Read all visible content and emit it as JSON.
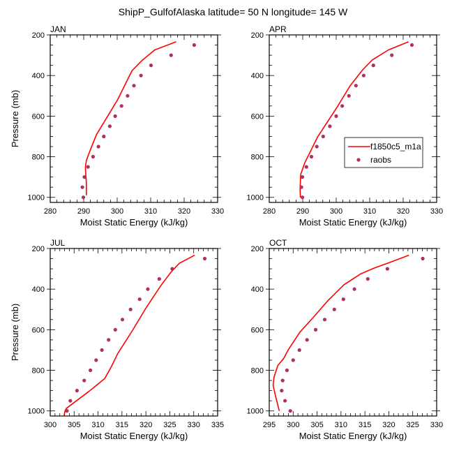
{
  "figure": {
    "title": "ShipP_GulfofAlaska  latitude= 50 N longitude= 145 W",
    "line_color": "#ff0000",
    "marker_color": "#b03060"
  },
  "legend": {
    "placement": "inside APR panel, middle-right",
    "entries": [
      {
        "label": "f1850c5_m1a",
        "style": "line"
      },
      {
        "label": "raobs",
        "style": "marker"
      }
    ]
  },
  "chart_data": [
    {
      "type": "line",
      "panel": "top-left",
      "title": "JAN",
      "xlabel": "Moist Static Energy (kJ/kg)",
      "ylabel": "Pressure (mb)",
      "xlim": [
        280,
        330
      ],
      "ylim": [
        1025,
        200
      ],
      "xticks": [
        280,
        290,
        300,
        310,
        320,
        330
      ],
      "yticks": [
        200,
        400,
        600,
        800,
        1000
      ],
      "show_ylabel": true,
      "series": [
        {
          "name": "f1850c5_m1a",
          "kind": "line",
          "x": [
            290.8,
            290.8,
            290.5,
            290.8,
            292.1,
            293.8,
            300.1,
            304.4,
            307.4,
            311.2,
            317.6
          ],
          "p": [
            990,
            932,
            852,
            818,
            761,
            692,
            520,
            377,
            326,
            274,
            234
          ]
        },
        {
          "name": "raobs",
          "kind": "marker",
          "x": [
            323.0,
            316.1,
            310.1,
            307.1,
            305.0,
            303.1,
            301.3,
            299.4,
            297.8,
            296.0,
            294.4,
            292.8,
            291.3,
            290.2,
            289.6,
            289.9
          ],
          "p": [
            250,
            300,
            350,
            400,
            450,
            500,
            550,
            600,
            650,
            700,
            750,
            800,
            850,
            900,
            950,
            1000
          ]
        }
      ]
    },
    {
      "type": "line",
      "panel": "top-right",
      "title": "APR",
      "xlabel": "Moist Static Energy (kJ/kg)",
      "ylabel": "",
      "xlim": [
        280,
        330
      ],
      "ylim": [
        1025,
        200
      ],
      "xticks": [
        280,
        290,
        300,
        310,
        320,
        330
      ],
      "yticks": [
        200,
        400,
        600,
        800,
        1000
      ],
      "show_ylabel": false,
      "series": [
        {
          "name": "f1850c5_m1a",
          "kind": "line",
          "x": [
            289.3,
            289.2,
            289.4,
            290.6,
            294.4,
            300.3,
            304.1,
            307.9,
            310.8,
            315.6,
            321.6
          ],
          "p": [
            1001,
            956,
            887,
            830,
            704,
            555,
            452,
            372,
            323,
            274,
            234
          ]
        },
        {
          "name": "raobs",
          "kind": "marker",
          "x": [
            322.6,
            316.6,
            311.1,
            308.2,
            305.9,
            303.8,
            301.8,
            300.0,
            298.1,
            296.1,
            294.2,
            292.6,
            291.1,
            289.9,
            289.6,
            289.9
          ],
          "p": [
            250,
            300,
            350,
            400,
            450,
            500,
            550,
            600,
            650,
            700,
            750,
            800,
            850,
            900,
            950,
            1000
          ]
        }
      ]
    },
    {
      "type": "line",
      "panel": "bottom-left",
      "title": "JUL",
      "xlabel": "Moist Static Energy (kJ/kg)",
      "ylabel": "Pressure (mb)",
      "xlim": [
        300,
        335
      ],
      "ylim": [
        1025,
        200
      ],
      "xticks": [
        300,
        305,
        310,
        315,
        320,
        325,
        330,
        335
      ],
      "yticks": [
        200,
        400,
        600,
        800,
        1000
      ],
      "show_ylabel": true,
      "series": [
        {
          "name": "f1850c5_m1a",
          "kind": "line",
          "x": [
            302.9,
            303.1,
            303.35,
            308.2,
            311.4,
            312.8,
            314.1,
            317.2,
            320.1,
            323.0,
            325.2,
            327.0,
            330.2
          ],
          "p": [
            1022,
            999,
            988,
            902,
            840,
            781,
            718,
            604,
            490,
            387,
            318,
            273,
            233
          ]
        },
        {
          "name": "raobs",
          "kind": "marker",
          "x": [
            332.3,
            325.5,
            322.8,
            320.4,
            318.7,
            316.8,
            315.1,
            313.6,
            312.2,
            310.8,
            309.6,
            308.4,
            307.1,
            305.6,
            304.2,
            303.5
          ],
          "p": [
            250,
            300,
            350,
            400,
            450,
            500,
            550,
            600,
            650,
            700,
            750,
            800,
            850,
            900,
            950,
            1000
          ]
        }
      ]
    },
    {
      "type": "line",
      "panel": "bottom-right",
      "title": "OCT",
      "xlabel": "Moist Static Energy (kJ/kg)",
      "ylabel": "",
      "xlim": [
        295,
        330
      ],
      "ylim": [
        1025,
        200
      ],
      "xticks": [
        295,
        300,
        305,
        310,
        315,
        320,
        325,
        330
      ],
      "yticks": [
        200,
        400,
        600,
        800,
        1000
      ],
      "show_ylabel": false,
      "series": [
        {
          "name": "f1850c5_m1a",
          "kind": "line",
          "x": [
            297.1,
            296.8,
            296.3,
            295.8,
            296.0,
            296.8,
            298.0,
            299.0,
            301.4,
            304.3,
            307.25,
            310.6,
            314.1,
            317.0,
            319.9,
            324.2
          ],
          "p": [
            1000,
            971,
            925,
            873,
            833,
            776,
            742,
            698,
            612,
            537,
            457,
            379,
            325,
            296,
            271,
            233
          ]
        },
        {
          "name": "raobs",
          "kind": "marker",
          "x": [
            327.1,
            319.7,
            315.6,
            312.8,
            310.5,
            308.6,
            306.6,
            304.7,
            302.9,
            301.3,
            300.0,
            298.7,
            297.8,
            297.6,
            298.3,
            299.4
          ],
          "p": [
            250,
            300,
            350,
            400,
            450,
            500,
            550,
            600,
            650,
            700,
            750,
            800,
            850,
            900,
            950,
            1000
          ]
        }
      ]
    }
  ]
}
